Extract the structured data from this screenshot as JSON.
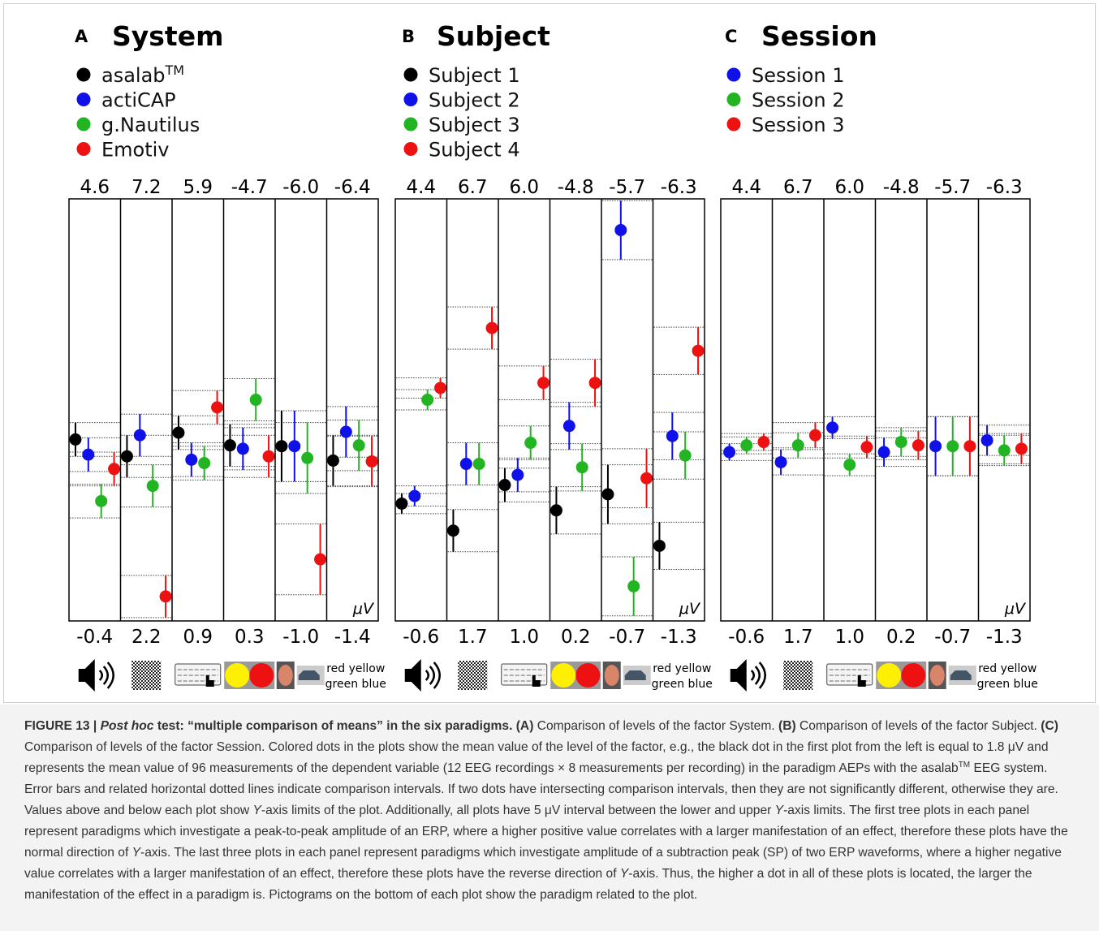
{
  "panels": [
    {
      "letter": "A",
      "title": "System",
      "legend": [
        {
          "name": "asalab",
          "sup": "TM",
          "color": "#000000"
        },
        {
          "name": "actiCAP",
          "color": "#1010e8"
        },
        {
          "name": "g.Nautilus",
          "color": "#22b422"
        },
        {
          "name": "Emotiv",
          "color": "#ee1111"
        }
      ],
      "plots": [
        {
          "top": 4.6,
          "bottom": -0.4,
          "values": [
            1.75,
            1.57,
            1.02,
            1.4
          ],
          "errors": [
            0.2,
            0.2,
            0.2,
            0.2
          ]
        },
        {
          "top": 7.2,
          "bottom": 2.2,
          "values": [
            4.15,
            4.4,
            3.8,
            2.49
          ],
          "errors": [
            0.25,
            0.25,
            0.25,
            0.25
          ]
        },
        {
          "top": 5.9,
          "bottom": 0.9,
          "values": [
            3.13,
            2.81,
            2.77,
            3.43
          ],
          "errors": [
            0.2,
            0.2,
            0.2,
            0.2
          ]
        },
        {
          "top": -4.7,
          "bottom": 0.3,
          "values": [
            -1.78,
            -1.74,
            -2.32,
            -1.65
          ],
          "errors": [
            0.25,
            0.25,
            0.25,
            0.25
          ]
        },
        {
          "top": {
            "value": -6,
            "label": "-6.0"
          },
          "bottom": {
            "value": -1,
            "label": "-1.0"
          },
          "values": [
            -3.07,
            -3.07,
            -2.93,
            -1.73
          ],
          "errors": [
            0.42,
            0.42,
            0.42,
            0.42
          ]
        },
        {
          "top": -6.4,
          "bottom": -1.4,
          "values": [
            -3.3,
            -3.64,
            -3.48,
            -3.29
          ],
          "errors": [
            0.3,
            0.3,
            0.3,
            0.3
          ]
        }
      ]
    },
    {
      "letter": "B",
      "title": "Subject",
      "legend": [
        {
          "name": "Subject 1",
          "color": "#000000"
        },
        {
          "name": "Subject 2",
          "color": "#1010e8"
        },
        {
          "name": "Subject 3",
          "color": "#22b422"
        },
        {
          "name": "Subject 4",
          "color": "#ee1111"
        }
      ],
      "plots": [
        {
          "top": 4.4,
          "bottom": -0.6,
          "values": [
            0.79,
            0.88,
            2.02,
            2.16
          ],
          "errors": [
            0.12,
            0.12,
            0.12,
            0.12
          ]
        },
        {
          "top": 6.7,
          "bottom": 1.7,
          "values": [
            2.77,
            3.56,
            3.56,
            5.17
          ],
          "errors": [
            0.25,
            0.25,
            0.25,
            0.25
          ]
        },
        {
          "top": {
            "value": 6,
            "label": "6.0"
          },
          "bottom": {
            "value": 1,
            "label": "1.0"
          },
          "values": [
            2.61,
            2.73,
            3.11,
            3.82
          ],
          "errors": [
            0.2,
            0.2,
            0.2,
            0.2
          ]
        },
        {
          "top": -4.8,
          "bottom": 0.2,
          "values": [
            -1.11,
            -2.11,
            -1.62,
            -2.62
          ],
          "errors": [
            0.28,
            0.28,
            0.28,
            0.28
          ]
        },
        {
          "top": -5.7,
          "bottom": -0.7,
          "values": [
            -2.2,
            -5.33,
            -1.11,
            -2.39
          ],
          "errors": [
            0.35,
            0.35,
            0.35,
            0.35
          ]
        },
        {
          "top": -6.3,
          "bottom": -1.3,
          "values": [
            -2.19,
            -3.49,
            -3.26,
            -4.5
          ],
          "errors": [
            0.28,
            0.28,
            0.28,
            0.28
          ]
        }
      ]
    },
    {
      "letter": "C",
      "title": "Session",
      "legend": [
        {
          "name": "Session 1",
          "color": "#1010e8"
        },
        {
          "name": "Session 2",
          "color": "#22b422"
        },
        {
          "name": "Session 3",
          "color": "#ee1111"
        }
      ],
      "plots": [
        {
          "top": 4.4,
          "bottom": -0.6,
          "values": [
            1.4,
            1.48,
            1.52
          ],
          "errors": [
            0.1,
            0.1,
            0.1
          ]
        },
        {
          "top": 6.7,
          "bottom": 1.7,
          "values": [
            3.58,
            3.78,
            3.9
          ],
          "errors": [
            0.15,
            0.15,
            0.15
          ]
        },
        {
          "top": {
            "value": 6,
            "label": "6.0"
          },
          "bottom": {
            "value": 1,
            "label": "1.0"
          },
          "values": [
            3.29,
            2.85,
            3.06
          ],
          "errors": [
            0.13,
            0.13,
            0.13
          ]
        },
        {
          "top": -4.8,
          "bottom": 0.2,
          "values": [
            -1.8,
            -1.92,
            -1.88
          ],
          "errors": [
            0.17,
            0.17,
            0.17
          ]
        },
        {
          "top": -5.7,
          "bottom": -0.7,
          "values": [
            -2.77,
            -2.77,
            -2.77
          ],
          "errors": [
            0.35,
            0.35,
            0.35
          ]
        },
        {
          "top": -6.3,
          "bottom": -1.3,
          "values": [
            -3.44,
            -3.32,
            -3.34
          ],
          "errors": [
            0.18,
            0.18,
            0.18
          ]
        }
      ]
    }
  ],
  "unit": "μV",
  "pictogram_text": [
    "red yellow",
    "green blue"
  ],
  "caption": [
    {
      "text": "FIGURE 13 | ",
      "bold": true
    },
    {
      "text": "Post hoc",
      "bold": true,
      "italic": true
    },
    {
      "text": " test: “multiple comparison of means” in the six paradigms.",
      "bold": true
    },
    {
      "text": " (A)",
      "bold": true
    },
    {
      "text": " Comparison of levels of the factor System. "
    },
    {
      "text": "(B)",
      "bold": true
    },
    {
      "text": " Comparison of levels of the factor Subject. "
    },
    {
      "text": "(C)",
      "bold": true
    },
    {
      "text": " Comparison of levels of the factor Session. Colored dots in the plots show the mean value of the level of the factor, e.g., the black dot in the first plot from the left is equal to 1.8 μV and represents the mean value of 96 measurements of the dependent variable (12 EEG recordings × 8 measurements per recording) in the paradigm AEPs with the asalab"
    },
    {
      "text": "TM",
      "sup": true
    },
    {
      "text": " EEG system. Error bars and related horizontal dotted lines indicate comparison intervals. If two dots have intersecting comparison intervals, then they are not significantly different, otherwise they are. Values above and below each plot show "
    },
    {
      "text": "Y",
      "italic": true
    },
    {
      "text": "-axis limits of the plot. Additionally, all plots have 5 μV interval between the lower and upper "
    },
    {
      "text": "Y",
      "italic": true
    },
    {
      "text": "-axis limits. The first tree plots in each panel represent paradigms which investigate a peak-to-peak amplitude of an ERP, where a higher positive value correlates with a larger manifestation of an effect, therefore these plots have the normal direction of "
    },
    {
      "text": "Y",
      "italic": true
    },
    {
      "text": "-axis. The last three plots in each panel represent paradigms which investigate amplitude of a subtraction peak (SP) of two ERP waveforms, where a higher negative value correlates with a larger manifestation of an effect, therefore these plots have the reverse direction of "
    },
    {
      "text": "Y",
      "italic": true
    },
    {
      "text": "-axis. Thus, the higher a dot in all of these plots is located, the larger the manifestation of the effect in a paradigm is. Pictograms on the bottom of each plot show the paradigm related to the plot."
    }
  ]
}
